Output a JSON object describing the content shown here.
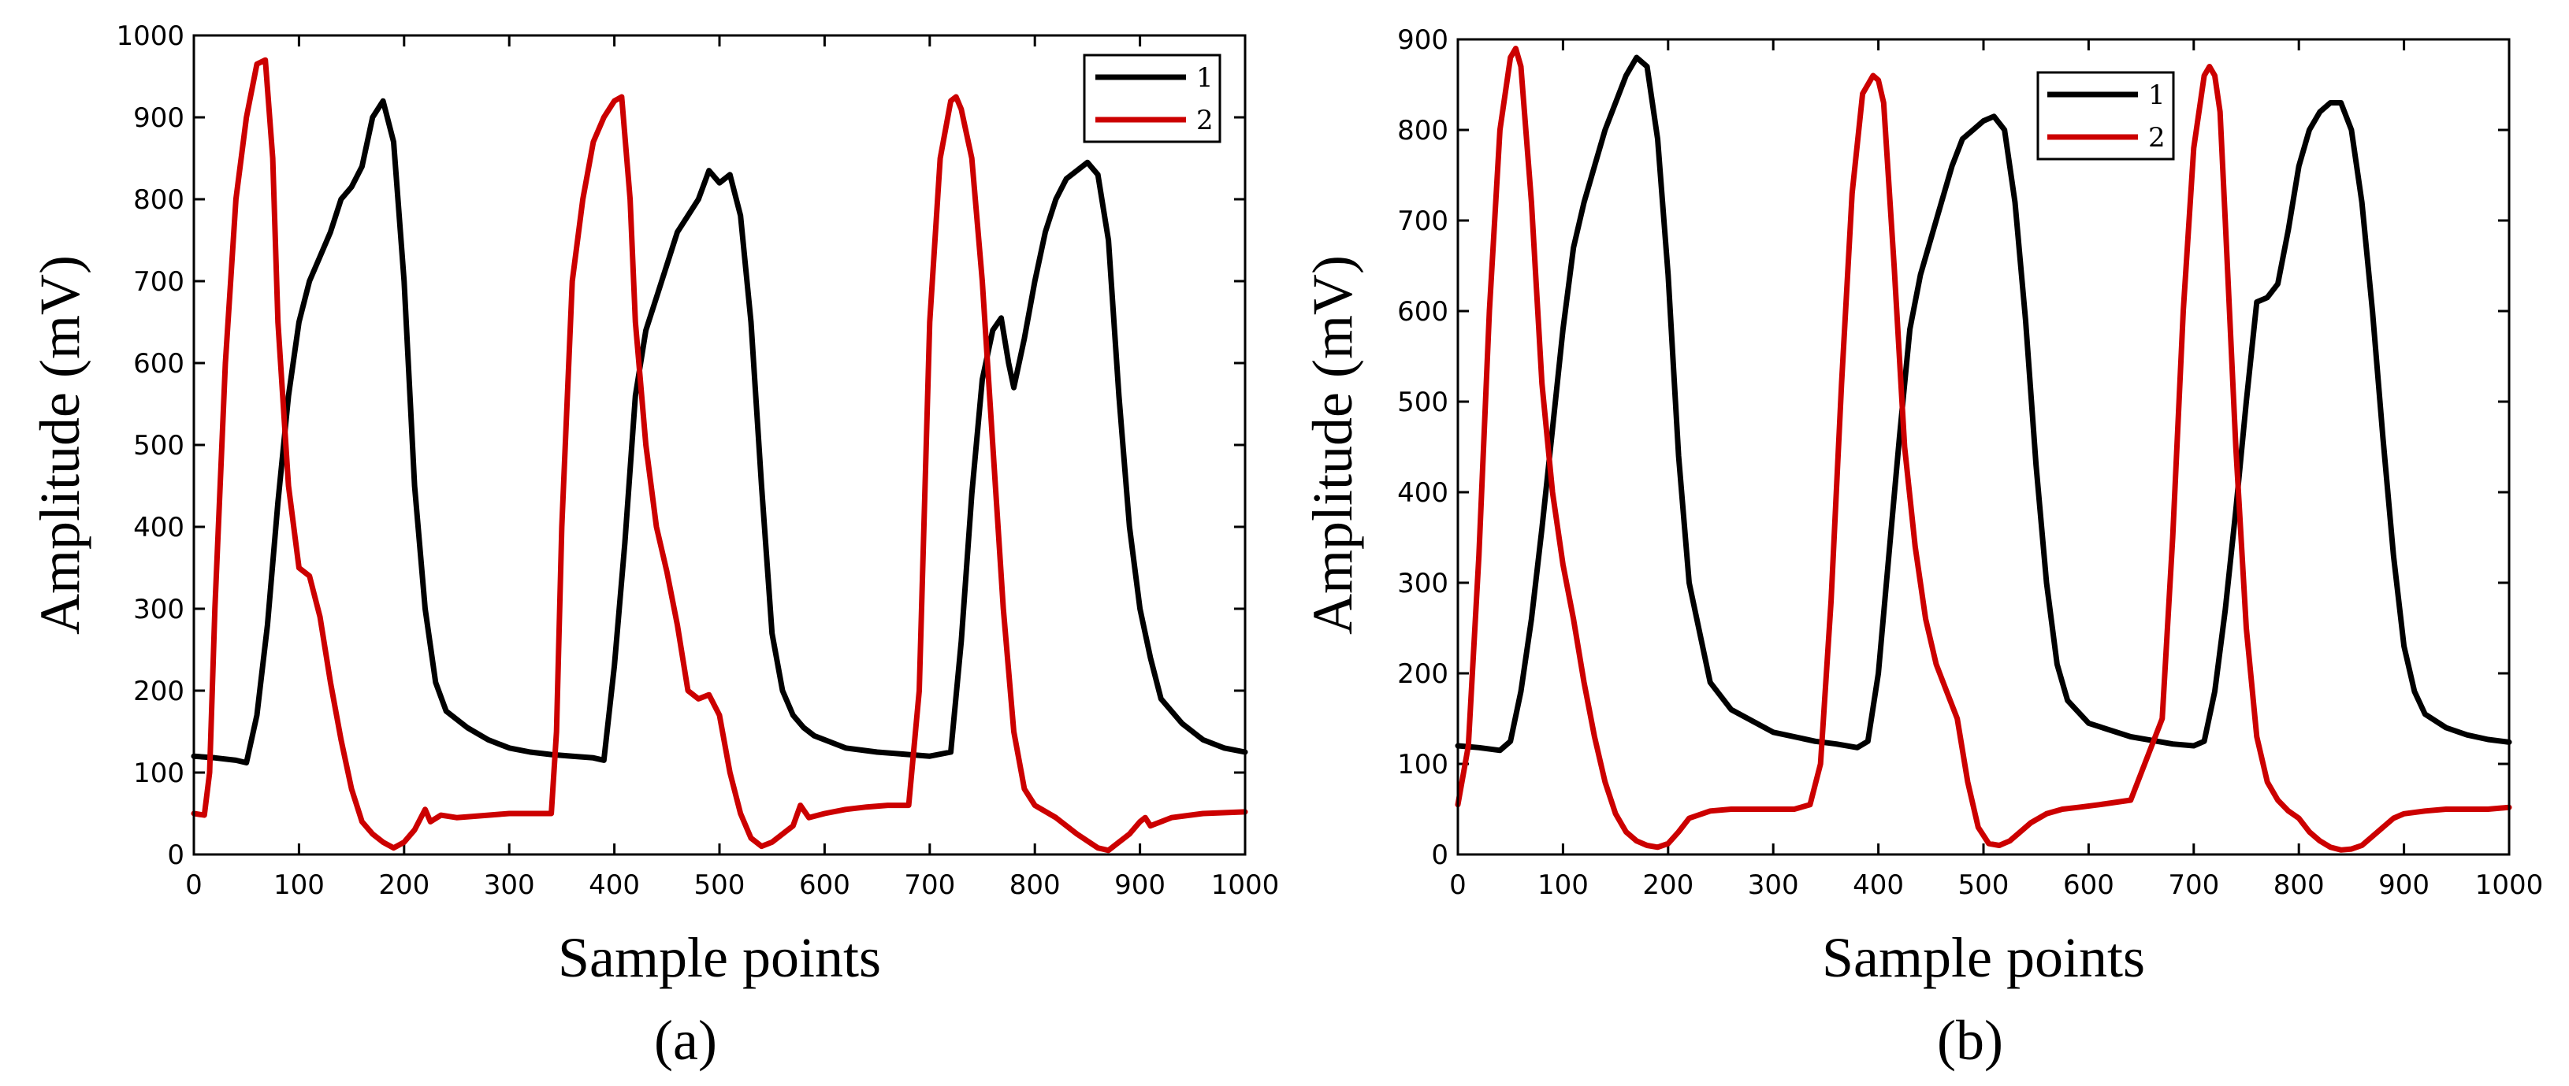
{
  "colors": {
    "series_1": "#000000",
    "series_2": "#cc0000",
    "axis": "#000000",
    "background": "#ffffff"
  },
  "chart_data": [
    {
      "panel": "(a)",
      "type": "line",
      "xlabel": "Sample points",
      "ylabel": "Amplitude (mV)",
      "xlim": [
        0,
        1000
      ],
      "ylim": [
        0,
        1000
      ],
      "xticks": [
        0,
        100,
        200,
        300,
        400,
        500,
        600,
        700,
        800,
        900,
        1000
      ],
      "yticks": [
        0,
        100,
        200,
        300,
        400,
        500,
        600,
        700,
        800,
        900,
        1000
      ],
      "legend_position": "top-right",
      "series": [
        {
          "name": "1",
          "color": "#000000",
          "x": [
            0,
            20,
            40,
            50,
            60,
            70,
            80,
            90,
            100,
            110,
            120,
            130,
            140,
            150,
            160,
            170,
            180,
            190,
            200,
            210,
            220,
            230,
            240,
            260,
            280,
            300,
            320,
            340,
            360,
            380,
            390,
            400,
            410,
            420,
            430,
            440,
            450,
            460,
            470,
            480,
            490,
            500,
            510,
            520,
            530,
            540,
            550,
            560,
            570,
            580,
            590,
            600,
            620,
            650,
            680,
            700,
            720,
            730,
            740,
            750,
            760,
            768,
            775,
            780,
            790,
            800,
            810,
            820,
            830,
            840,
            850,
            860,
            870,
            880,
            890,
            900,
            910,
            920,
            940,
            960,
            980,
            1000
          ],
          "y": [
            120,
            118,
            115,
            112,
            170,
            280,
            430,
            560,
            650,
            700,
            730,
            760,
            800,
            815,
            840,
            900,
            920,
            870,
            700,
            450,
            300,
            210,
            175,
            155,
            140,
            130,
            125,
            122,
            120,
            118,
            115,
            230,
            380,
            560,
            640,
            680,
            720,
            760,
            780,
            800,
            835,
            820,
            830,
            780,
            650,
            450,
            270,
            200,
            170,
            155,
            145,
            140,
            130,
            125,
            122,
            120,
            125,
            260,
            440,
            580,
            640,
            655,
            600,
            570,
            630,
            700,
            760,
            800,
            825,
            835,
            845,
            830,
            750,
            560,
            400,
            300,
            240,
            190,
            160,
            140,
            130,
            125
          ]
        },
        {
          "name": "2",
          "color": "#cc0000",
          "x": [
            0,
            10,
            15,
            20,
            30,
            40,
            50,
            60,
            68,
            75,
            80,
            90,
            100,
            110,
            120,
            130,
            140,
            150,
            160,
            170,
            180,
            190,
            200,
            210,
            220,
            225,
            235,
            250,
            280,
            300,
            320,
            340,
            345,
            350,
            360,
            370,
            380,
            390,
            400,
            407,
            415,
            420,
            430,
            440,
            450,
            460,
            470,
            480,
            490,
            500,
            510,
            520,
            530,
            540,
            550,
            570,
            577,
            585,
            600,
            620,
            640,
            660,
            680,
            690,
            700,
            710,
            720,
            725,
            730,
            740,
            750,
            760,
            770,
            780,
            790,
            800,
            820,
            840,
            860,
            870,
            880,
            890,
            900,
            905,
            910,
            930,
            960,
            1000
          ],
          "y": [
            50,
            48,
            100,
            300,
            600,
            800,
            900,
            965,
            970,
            850,
            650,
            450,
            350,
            340,
            290,
            210,
            140,
            80,
            40,
            25,
            15,
            8,
            15,
            30,
            55,
            40,
            48,
            45,
            48,
            50,
            50,
            50,
            150,
            400,
            700,
            800,
            870,
            900,
            920,
            925,
            800,
            650,
            500,
            400,
            345,
            280,
            200,
            190,
            195,
            170,
            100,
            50,
            20,
            10,
            15,
            35,
            60,
            45,
            50,
            55,
            58,
            60,
            60,
            200,
            650,
            850,
            920,
            925,
            910,
            850,
            700,
            500,
            300,
            150,
            80,
            60,
            45,
            25,
            8,
            5,
            15,
            25,
            40,
            45,
            35,
            45,
            50,
            52
          ]
        }
      ]
    },
    {
      "panel": "(b)",
      "type": "line",
      "xlabel": "Sample points",
      "ylabel": "Amplitude (mV)",
      "xlim": [
        0,
        1000
      ],
      "ylim": [
        0,
        900
      ],
      "xticks": [
        0,
        100,
        200,
        300,
        400,
        500,
        600,
        700,
        800,
        900,
        1000
      ],
      "yticks": [
        0,
        100,
        200,
        300,
        400,
        500,
        600,
        700,
        800,
        900
      ],
      "legend_position": "top-center",
      "series": [
        {
          "name": "1",
          "color": "#000000",
          "x": [
            0,
            20,
            40,
            50,
            60,
            70,
            80,
            90,
            100,
            110,
            120,
            130,
            140,
            150,
            160,
            170,
            180,
            190,
            200,
            210,
            220,
            240,
            260,
            300,
            340,
            360,
            380,
            390,
            400,
            410,
            420,
            430,
            440,
            450,
            460,
            470,
            480,
            490,
            500,
            510,
            520,
            530,
            540,
            550,
            560,
            570,
            580,
            600,
            640,
            680,
            700,
            710,
            720,
            730,
            740,
            750,
            760,
            770,
            780,
            790,
            800,
            810,
            820,
            830,
            840,
            850,
            860,
            870,
            880,
            890,
            900,
            910,
            920,
            940,
            960,
            980,
            1000
          ],
          "y": [
            120,
            118,
            115,
            125,
            180,
            260,
            360,
            470,
            580,
            670,
            720,
            760,
            800,
            830,
            860,
            880,
            870,
            790,
            640,
            440,
            300,
            190,
            160,
            135,
            125,
            122,
            118,
            125,
            200,
            330,
            460,
            580,
            640,
            680,
            720,
            760,
            790,
            800,
            810,
            815,
            800,
            720,
            590,
            430,
            300,
            210,
            170,
            145,
            130,
            122,
            120,
            125,
            180,
            270,
            380,
            500,
            610,
            615,
            630,
            690,
            760,
            800,
            820,
            830,
            830,
            800,
            720,
            600,
            460,
            330,
            230,
            180,
            155,
            140,
            132,
            127,
            124
          ]
        },
        {
          "name": "2",
          "color": "#cc0000",
          "x": [
            0,
            10,
            20,
            30,
            40,
            50,
            55,
            60,
            70,
            80,
            90,
            100,
            110,
            120,
            130,
            140,
            150,
            160,
            170,
            180,
            190,
            200,
            210,
            220,
            240,
            260,
            280,
            300,
            320,
            335,
            345,
            355,
            365,
            375,
            385,
            395,
            400,
            405,
            415,
            425,
            435,
            445,
            455,
            465,
            475,
            485,
            495,
            505,
            515,
            525,
            535,
            545,
            560,
            575,
            590,
            610,
            640,
            670,
            680,
            690,
            700,
            710,
            715,
            720,
            725,
            730,
            740,
            750,
            760,
            770,
            780,
            790,
            800,
            810,
            820,
            830,
            840,
            850,
            860,
            870,
            880,
            890,
            900,
            920,
            940,
            960,
            980,
            1000
          ],
          "y": [
            55,
            120,
            330,
            600,
            800,
            880,
            890,
            870,
            720,
            520,
            400,
            320,
            260,
            190,
            130,
            80,
            45,
            25,
            15,
            10,
            8,
            12,
            25,
            40,
            48,
            50,
            50,
            50,
            50,
            55,
            100,
            280,
            520,
            730,
            840,
            860,
            855,
            830,
            650,
            450,
            340,
            260,
            210,
            180,
            150,
            80,
            30,
            12,
            10,
            15,
            25,
            35,
            45,
            50,
            52,
            55,
            60,
            150,
            350,
            600,
            780,
            860,
            870,
            860,
            820,
            700,
            450,
            250,
            130,
            80,
            60,
            48,
            40,
            25,
            15,
            8,
            5,
            6,
            10,
            20,
            30,
            40,
            45,
            48,
            50,
            50,
            50,
            52
          ]
        }
      ]
    }
  ]
}
